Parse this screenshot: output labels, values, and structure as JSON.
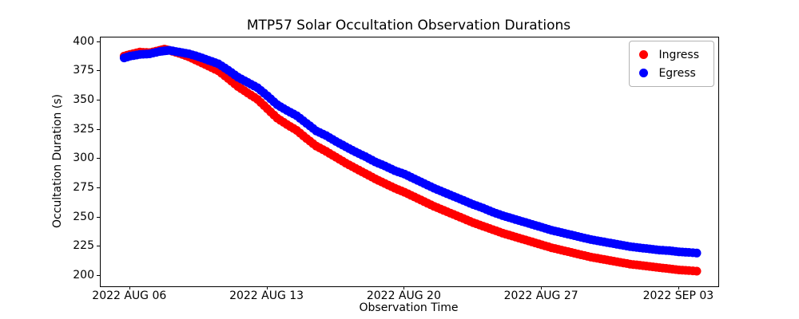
{
  "chart_data": {
    "type": "scatter",
    "title": "MTP57 Solar Occultation Observation Durations",
    "xlabel": "Observation Time",
    "ylabel": "Occultation Duration (s)",
    "grid": false,
    "legend_position": "upper right",
    "x_axis": {
      "unit": "days relative to first labeled tick",
      "tick_positions": [
        0,
        7,
        14,
        21,
        28
      ],
      "tick_labels": [
        "2022 AUG 06",
        "2022 AUG 13",
        "2022 AUG 20",
        "2022 AUG 27",
        "2022 SEP 03"
      ],
      "xlim": [
        -1.5,
        30.0
      ]
    },
    "y_axis": {
      "tick_values": [
        200,
        225,
        250,
        275,
        300,
        325,
        350,
        375,
        400
      ],
      "ylim": [
        191,
        404
      ]
    },
    "marker_radius_px": 5.5,
    "x": [
      -0.3,
      0,
      0.5,
      1,
      1.5,
      1.75,
      2,
      2.5,
      3,
      3.5,
      4,
      4.5,
      5,
      5.5,
      6,
      6.5,
      7,
      7.5,
      8,
      8.5,
      9,
      9.5,
      10,
      10.5,
      11,
      11.5,
      12,
      12.5,
      13,
      13.5,
      14,
      14.5,
      15,
      15.5,
      16,
      16.5,
      17,
      17.5,
      18,
      18.5,
      19,
      19.5,
      20,
      20.5,
      21,
      21.5,
      22,
      22.5,
      23,
      23.5,
      24,
      24.5,
      25,
      25.5,
      26,
      26.5,
      27,
      27.5,
      28,
      28.5,
      28.9
    ],
    "series": [
      {
        "name": "Ingress",
        "color": "#ff0000",
        "y": [
          388,
          389.5,
          391.5,
          391,
          393,
          394,
          393,
          390.5,
          387.5,
          383.5,
          379.5,
          375.5,
          369,
          362,
          356.5,
          351,
          343,
          335,
          329.5,
          324.5,
          317.5,
          311,
          306.5,
          301.5,
          296.5,
          292,
          287.5,
          283,
          279,
          275,
          271.5,
          267.5,
          263.5,
          259.5,
          256,
          252.5,
          249,
          245.5,
          242.5,
          239.5,
          236.5,
          234,
          231.5,
          229,
          226.5,
          224,
          222,
          220,
          218,
          216,
          214.5,
          213,
          211.5,
          210,
          209,
          208,
          207,
          206,
          205,
          204.5,
          204
        ]
      },
      {
        "name": "Egress",
        "color": "#0000ff",
        "y": [
          386.5,
          388,
          389.5,
          390,
          392,
          392.5,
          393,
          391.5,
          390,
          387.5,
          384.5,
          381.5,
          376,
          370,
          365.5,
          361,
          354,
          346.5,
          341.5,
          337,
          330.5,
          324,
          320,
          315,
          310.5,
          306,
          302,
          297.5,
          294,
          290,
          287,
          283,
          279,
          275,
          271.5,
          268,
          264.5,
          261,
          258,
          254.5,
          251.5,
          249,
          246.5,
          244,
          241.5,
          239,
          237,
          235,
          233,
          231,
          229.5,
          228,
          226.5,
          225,
          224,
          223,
          222,
          221.5,
          220.5,
          220,
          219.5
        ]
      }
    ]
  },
  "legend": {
    "items": [
      {
        "label": "Ingress",
        "color": "#ff0000"
      },
      {
        "label": "Egress",
        "color": "#0000ff"
      }
    ]
  }
}
